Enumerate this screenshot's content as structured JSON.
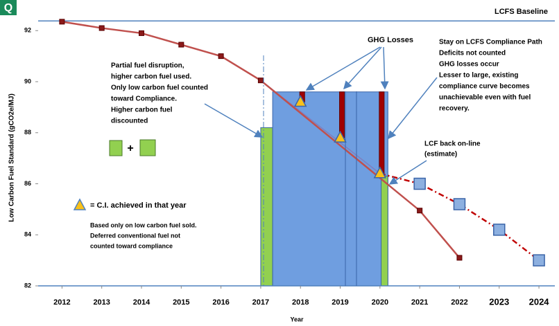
{
  "chart_data": {
    "type": "line",
    "logo": "Q",
    "y_label": "Low Carbon Fuel Standard (gCO2e/MJ)",
    "x_label": "Year",
    "xlim": [
      2011.4,
      2024.4
    ],
    "xticks": [
      2012,
      2013,
      2014,
      2015,
      2016,
      2017,
      2018,
      2019,
      2020,
      2021,
      2022,
      2023,
      2024
    ],
    "ylim": [
      82,
      93.2
    ],
    "yticks": [
      82,
      84,
      86,
      88,
      90,
      92
    ],
    "grid": false,
    "baseline": {
      "name": "LCFS Baseline",
      "value": 92.38,
      "color": "#4f81bd"
    },
    "bars": [
      {
        "x0": 2017,
        "x1": 2017.3,
        "value": 88.2,
        "color": "#92d050"
      },
      {
        "x0": 2017.3,
        "x1": 2020.2,
        "value": 89.6,
        "color": "#6f9ee0"
      },
      {
        "x0": 2020.03,
        "x1": 2020.2,
        "value": 86.3,
        "color": "#92d050"
      }
    ],
    "series": [
      {
        "x": [
          2012,
          2013,
          2014,
          2015,
          2016,
          2017,
          2021,
          2022
        ],
        "values": [
          92.35,
          92.1,
          91.9,
          91.45,
          91.0,
          90.05,
          84.95,
          83.1
        ],
        "color": "#c0504d",
        "marker": "square"
      },
      {
        "x": [
          2018,
          2019,
          2020
        ],
        "values": [
          89.2,
          87.8,
          86.4
        ],
        "color": "#f9c11a",
        "marker": "triangle"
      },
      {
        "x": [
          2021,
          2022,
          2023,
          2024
        ],
        "values": [
          86.0,
          85.2,
          84.2,
          83.0
        ],
        "color": "#c00000",
        "marker": "bluesquare",
        "dashed": true
      }
    ],
    "annotations": {
      "ghg_losses": "GHG Losses",
      "partial": [
        "Partial fuel disruption,",
        "higher carbon fuel used.",
        "Only low carbon fuel counted",
        "toward Compliance.",
        "Higher carbon fuel",
        "discounted"
      ],
      "stay": [
        "Stay on LCFS Compliance Path",
        "Deficits not counted",
        "GHG losses occur",
        "Lesser to large, existing",
        "compliance curve becomes",
        "unachievable even with fuel",
        "recovery."
      ],
      "lcf_back": [
        "LCF back on-line",
        "(estimate)"
      ],
      "plus": "+",
      "legend": "= C.I. achieved in that year",
      "based": [
        "Based only on low carbon fuel sold.",
        "Deferred conventional fuel not",
        "counted toward compliance"
      ]
    }
  }
}
